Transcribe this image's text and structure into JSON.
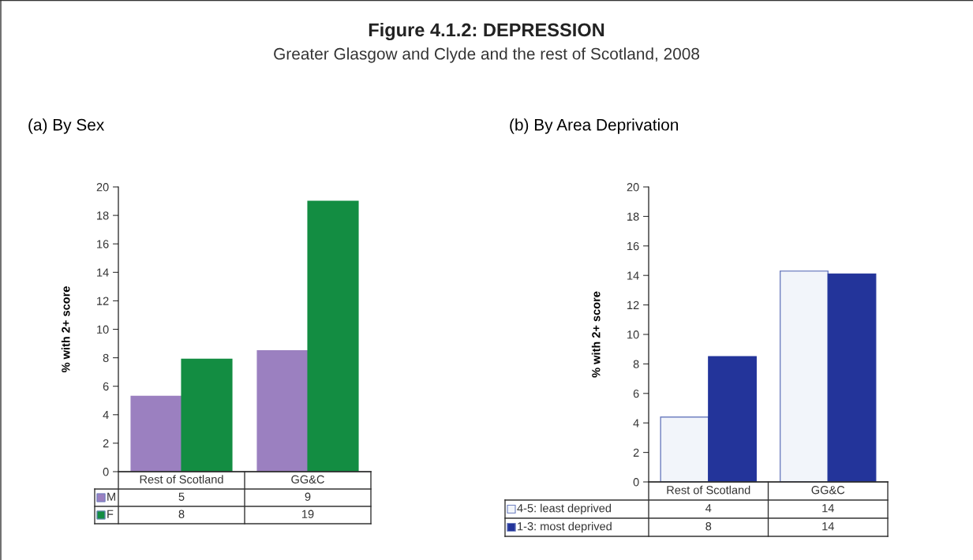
{
  "chart_data": [
    {
      "type": "bar",
      "title": "(a) By Sex",
      "ylabel": "% with 2+ score",
      "annotations": [
        "Figure 4.1.2: DEPRESSION",
        "Greater Glasgow and Clyde and the rest of Scotland, 2008"
      ],
      "categories": [
        "Rest of Scotland",
        "GG&C"
      ],
      "series": [
        {
          "name": "M",
          "color": "#9b80c0",
          "values": [
            5.3,
            8.5
          ],
          "value_labels": [
            "5",
            "9"
          ]
        },
        {
          "name": "F",
          "color": "#138d42",
          "values": [
            7.9,
            19.0
          ],
          "value_labels": [
            "8",
            "19"
          ]
        }
      ],
      "ylim": [
        0,
        20
      ],
      "yticks": [
        0,
        2,
        4,
        6,
        8,
        10,
        12,
        14,
        16,
        18,
        20
      ],
      "grid": false,
      "legend": "bottom"
    },
    {
      "type": "bar",
      "title": "(b) By Area Deprivation",
      "ylabel": "% with 2+ score",
      "categories": [
        "Rest of Scotland",
        "GG&C"
      ],
      "series": [
        {
          "name": "4-5: least deprived",
          "color": "#f2f5fa",
          "values": [
            4.4,
            14.3
          ],
          "value_labels": [
            "4",
            "14"
          ]
        },
        {
          "name": "1-3: most deprived",
          "color": "#23349a",
          "values": [
            8.5,
            14.1
          ],
          "value_labels": [
            "8",
            "14"
          ]
        }
      ],
      "ylim": [
        0,
        20
      ],
      "yticks": [
        0,
        2,
        4,
        6,
        8,
        10,
        12,
        14,
        16,
        18,
        20
      ],
      "grid": false,
      "legend": "bottom"
    }
  ]
}
